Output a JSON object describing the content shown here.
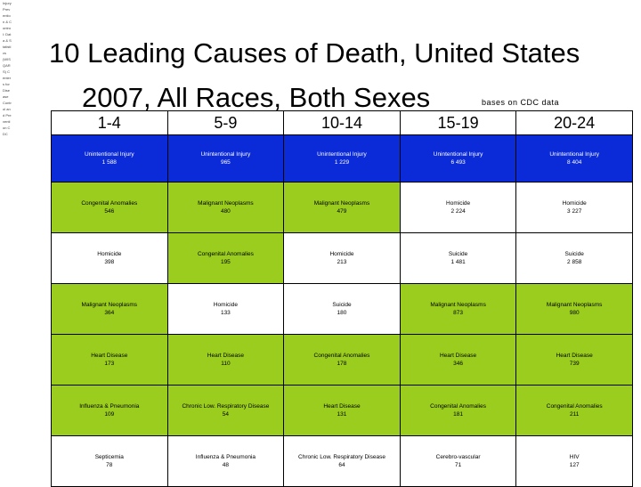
{
  "side_text": "Injury Prevention & Control: Data & Statistics (WISQARS) Centers for Disease Control and Prevention CDC",
  "title_line1": "10 Leading Causes of Death, United States",
  "title_line2": "2007, All Races, Both Sexes",
  "source_note": "bases on CDC data",
  "colors": {
    "header_row": "#0b2bd8",
    "green_cell": "#9acd1e",
    "white_cell": "#ffffff"
  },
  "columns": [
    "1-4",
    "5-9",
    "10-14",
    "15-19",
    "20-24"
  ],
  "rows": [
    {
      "style": "blue",
      "cells": [
        {
          "cause": "Unintentional Injury",
          "count": "1 588"
        },
        {
          "cause": "Unintentional Injury",
          "count": "965"
        },
        {
          "cause": "Unintentional Injury",
          "count": "1 229"
        },
        {
          "cause": "Unintentional Injury",
          "count": "6 493"
        },
        {
          "cause": "Unintentional Injury",
          "count": "8 404"
        }
      ]
    },
    {
      "style": "mixed",
      "cells": [
        {
          "cause": "Congenital Anomalies",
          "count": "546",
          "bg": "green"
        },
        {
          "cause": "Malignant Neoplasms",
          "count": "480",
          "bg": "green"
        },
        {
          "cause": "Malignant Neoplasms",
          "count": "479",
          "bg": "green"
        },
        {
          "cause": "Homicide",
          "count": "2 224",
          "bg": "white"
        },
        {
          "cause": "Homicide",
          "count": "3 227",
          "bg": "white"
        }
      ]
    },
    {
      "style": "mixed",
      "cells": [
        {
          "cause": "Homicide",
          "count": "398",
          "bg": "white"
        },
        {
          "cause": "Congenital Anomalies",
          "count": "195",
          "bg": "green"
        },
        {
          "cause": "Homicide",
          "count": "213",
          "bg": "white"
        },
        {
          "cause": "Suicide",
          "count": "1 481",
          "bg": "white"
        },
        {
          "cause": "Suicide",
          "count": "2 858",
          "bg": "white"
        }
      ]
    },
    {
      "style": "mixed",
      "cells": [
        {
          "cause": "Malignant Neoplasms",
          "count": "364",
          "bg": "green"
        },
        {
          "cause": "Homicide",
          "count": "133",
          "bg": "white"
        },
        {
          "cause": "Suicide",
          "count": "180",
          "bg": "white"
        },
        {
          "cause": "Malignant Neoplasms",
          "count": "873",
          "bg": "green"
        },
        {
          "cause": "Malignant Neoplasms",
          "count": "980",
          "bg": "green"
        }
      ]
    },
    {
      "style": "mixed",
      "cells": [
        {
          "cause": "Heart Disease",
          "count": "173",
          "bg": "green"
        },
        {
          "cause": "Heart Disease",
          "count": "110",
          "bg": "green"
        },
        {
          "cause": "Congenital Anomalies",
          "count": "178",
          "bg": "green"
        },
        {
          "cause": "Heart Disease",
          "count": "346",
          "bg": "green"
        },
        {
          "cause": "Heart Disease",
          "count": "739",
          "bg": "green"
        }
      ]
    },
    {
      "style": "mixed",
      "cells": [
        {
          "cause": "Influenza & Pneumonia",
          "count": "109",
          "bg": "green"
        },
        {
          "cause": "Chronic Low. Respiratory Disease",
          "count": "54",
          "bg": "green"
        },
        {
          "cause": "Heart Disease",
          "count": "131",
          "bg": "green"
        },
        {
          "cause": "Congenital Anomalies",
          "count": "181",
          "bg": "green"
        },
        {
          "cause": "Congenital Anomalies",
          "count": "211",
          "bg": "green"
        }
      ]
    },
    {
      "style": "mixed",
      "cells": [
        {
          "cause": "Septicemia",
          "count": "78",
          "bg": "white"
        },
        {
          "cause": "Influenza & Pneumonia",
          "count": "48",
          "bg": "white"
        },
        {
          "cause": "Chronic Low. Respiratory Disease",
          "count": "64",
          "bg": "white"
        },
        {
          "cause": "Cerebro-vascular",
          "count": "71",
          "bg": "white"
        },
        {
          "cause": "HIV",
          "count": "127",
          "bg": "white"
        }
      ]
    }
  ]
}
